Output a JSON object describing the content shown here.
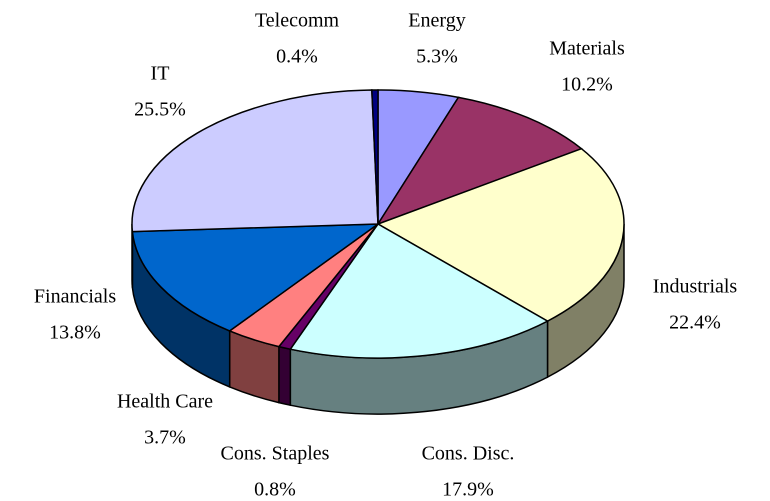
{
  "chart_data": {
    "type": "pie3d",
    "categories": [
      "Energy",
      "Materials",
      "Industrials",
      "Cons. Disc.",
      "Cons. Staples",
      "Health Care",
      "Financials",
      "IT",
      "Telecomm"
    ],
    "values": [
      5.3,
      10.2,
      22.4,
      17.9,
      0.8,
      3.7,
      13.8,
      25.5,
      0.4
    ],
    "value_labels": [
      "5.3%",
      "10.2%",
      "22.4%",
      "17.9%",
      "0.8%",
      "3.7%",
      "13.8%",
      "25.5%",
      "0.4%"
    ],
    "colors": [
      "#9999ff",
      "#993366",
      "#ffffcc",
      "#ccffff",
      "#660066",
      "#ff8080",
      "#0066cc",
      "#ccccff",
      "#000080"
    ]
  }
}
